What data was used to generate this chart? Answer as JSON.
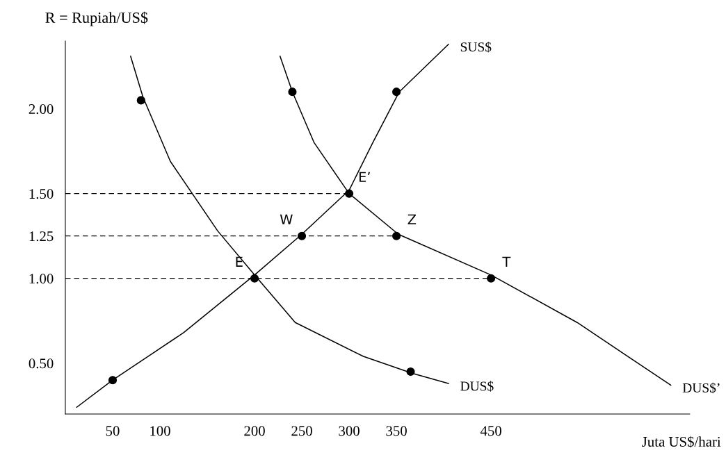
{
  "chart_data": {
    "type": "line",
    "xlabel": "Juta US$/hari",
    "ylabel": "R = Rupiah/US$",
    "xlim": [
      0,
      660
    ],
    "ylim": [
      0.2,
      2.4
    ],
    "xticks": [
      50,
      100,
      200,
      250,
      300,
      350,
      450
    ],
    "yticks": [
      {
        "value": 0.5,
        "label": "0.50"
      },
      {
        "value": 1.0,
        "label": "1.00"
      },
      {
        "value": 1.25,
        "label": "1.25"
      },
      {
        "value": 1.5,
        "label": "1.50"
      },
      {
        "value": 2.0,
        "label": "2.00"
      }
    ],
    "grid": false,
    "legend": false,
    "series": [
      {
        "name": "DUS$",
        "color": "#000000",
        "line_style": "solid",
        "x": [
          69,
          82,
          111,
          161,
          200,
          243,
          315,
          367,
          405
        ],
        "values": [
          2.31,
          2.07,
          1.69,
          1.28,
          1.02,
          0.74,
          0.54,
          0.44,
          0.38
        ]
      },
      {
        "name": "DUS$’",
        "color": "#000000",
        "line_style": "solid",
        "x": [
          227,
          240,
          263,
          300,
          352,
          450,
          541,
          640
        ],
        "values": [
          2.31,
          2.1,
          1.8,
          1.5,
          1.26,
          1.02,
          0.74,
          0.37
        ]
      },
      {
        "name": "SUS$",
        "color": "#000000",
        "line_style": "solid",
        "x": [
          12,
          50,
          125,
          200,
          250,
          300,
          325,
          353,
          405
        ],
        "values": [
          0.24,
          0.4,
          0.68,
          1.02,
          1.26,
          1.52,
          1.8,
          2.1,
          2.38
        ]
      },
      {
        "type": "line",
        "color": "#000000",
        "line_style": "dashed",
        "x": [
          0,
          300
        ],
        "values": [
          1.5,
          1.5
        ]
      },
      {
        "type": "line",
        "color": "#000000",
        "line_style": "dashed",
        "x": [
          0,
          350
        ],
        "values": [
          1.25,
          1.25
        ]
      },
      {
        "type": "line",
        "color": "#000000",
        "line_style": "dashed",
        "x": [
          0,
          450
        ],
        "values": [
          1.0,
          1.0
        ]
      },
      {
        "type": "scatter",
        "color": "#000000",
        "marker": "circle",
        "x": [
          80,
          200,
          365,
          240,
          300,
          350,
          450,
          50,
          250,
          350
        ],
        "values": [
          2.05,
          1.0,
          0.45,
          2.1,
          1.5,
          1.25,
          1.0,
          0.4,
          1.25,
          2.1
        ]
      }
    ],
    "annotations": [
      {
        "text": "E",
        "x": 200,
        "y": 1.0
      },
      {
        "text": "W",
        "x": 250,
        "y": 1.25
      },
      {
        "text": "E’",
        "x": 300,
        "y": 1.5
      },
      {
        "text": "Z",
        "x": 350,
        "y": 1.25
      },
      {
        "text": "T",
        "x": 450,
        "y": 1.0
      }
    ]
  }
}
